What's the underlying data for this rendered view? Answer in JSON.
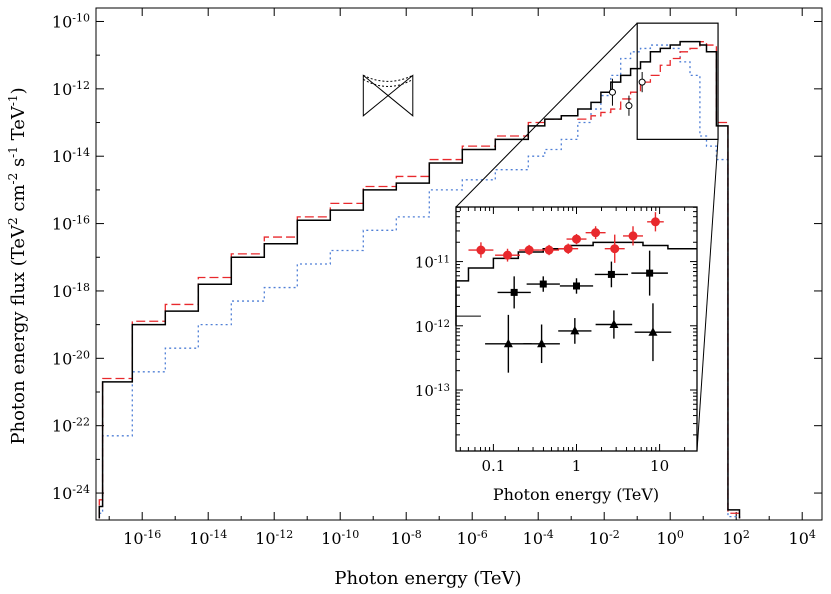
{
  "chart_data": [
    {
      "type": "line",
      "xlabel": "Photon energy (TeV)",
      "ylabel_parts": [
        "Photon energy flux (TeV",
        "2",
        " cm",
        "-2",
        " s",
        "-1",
        " TeV",
        "-1",
        ")"
      ],
      "x_scale": "log",
      "y_scale": "log",
      "xlim_log10": [
        -17.4,
        4.6
      ],
      "ylim_log10": [
        -24.8,
        -9.6
      ],
      "x_ticks_log10": [
        -16,
        -14,
        -12,
        -10,
        -8,
        -6,
        -4,
        -2,
        0,
        2,
        4
      ],
      "y_ticks_log10": [
        -24,
        -22,
        -20,
        -18,
        -16,
        -14,
        -12,
        -10
      ],
      "tick_base": "10",
      "series": [
        {
          "style": "black-solid",
          "color": "#000000",
          "bin_edges_log10": [
            -17.3,
            -17.2,
            -16.3,
            -15.3,
            -14.3,
            -13.3,
            -12.3,
            -11.3,
            -10.3,
            -9.3,
            -8.3,
            -7.3,
            -6.3,
            -5.3,
            -4.3,
            -3.8,
            -3.3,
            -2.8,
            -2.4,
            -2.1,
            -1.8,
            -1.5,
            -1.2,
            -0.9,
            -0.6,
            -0.3,
            0.0,
            0.3,
            0.6,
            0.9,
            1.1,
            1.4,
            1.75,
            2.1
          ],
          "values_log10": [
            -24.4,
            -20.7,
            -19.0,
            -18.6,
            -17.8,
            -17.0,
            -16.6,
            -15.9,
            -15.6,
            -15.0,
            -14.8,
            -14.2,
            -13.8,
            -13.5,
            -13.1,
            -12.9,
            -12.8,
            -12.6,
            -12.4,
            -12.1,
            -11.8,
            -11.6,
            -11.4,
            -11.2,
            -10.9,
            -10.8,
            -10.7,
            -10.6,
            -10.6,
            -10.7,
            -10.9,
            -13.1,
            -24.5
          ]
        },
        {
          "style": "red-dashed",
          "color": "#e8292d",
          "bin_edges_log10": [
            -17.3,
            -17.2,
            -16.3,
            -15.3,
            -14.3,
            -13.3,
            -12.3,
            -11.3,
            -10.3,
            -9.3,
            -8.3,
            -7.3,
            -6.3,
            -5.3,
            -4.3,
            -3.8,
            -3.3,
            -2.8,
            -2.4,
            -2.1,
            -1.8,
            -1.5,
            -1.2,
            -0.9,
            -0.6,
            -0.3,
            0.0,
            0.3,
            0.6,
            0.9,
            1.1,
            1.4,
            1.75,
            2.1
          ],
          "values_log10": [
            -24.2,
            -20.6,
            -18.9,
            -18.4,
            -17.6,
            -16.9,
            -16.4,
            -15.8,
            -15.4,
            -14.9,
            -14.6,
            -14.1,
            -13.7,
            -13.4,
            -13.0,
            -12.9,
            -12.8,
            -12.9,
            -12.8,
            -12.7,
            -12.6,
            -12.3,
            -12.1,
            -11.8,
            -11.6,
            -11.3,
            -11.1,
            -10.9,
            -10.8,
            -10.6,
            -10.7,
            -13.0,
            -24.6
          ]
        },
        {
          "style": "blue-dotted",
          "color": "#4f7fd6",
          "bin_edges_log10": [
            -17.3,
            -17.2,
            -16.3,
            -15.3,
            -14.3,
            -13.3,
            -12.3,
            -11.3,
            -10.3,
            -9.3,
            -8.3,
            -7.3,
            -6.3,
            -5.3,
            -4.3,
            -3.8,
            -3.3,
            -2.8,
            -2.4,
            -2.1,
            -1.8,
            -1.5,
            -1.2,
            -0.9,
            -0.6,
            -0.3,
            0.0,
            0.3,
            0.6,
            0.9,
            1.1,
            1.4,
            1.75,
            2.1
          ],
          "values_log10": [
            -24.6,
            -22.3,
            -20.4,
            -19.7,
            -19.0,
            -18.3,
            -17.9,
            -17.2,
            -16.8,
            -16.2,
            -15.8,
            -15.0,
            -14.7,
            -14.4,
            -14.0,
            -13.8,
            -13.5,
            -13.0,
            -12.6,
            -12.2,
            -11.6,
            -11.1,
            -10.9,
            -10.8,
            -10.7,
            -10.7,
            -10.8,
            -11.2,
            -11.6,
            -13.4,
            -13.7,
            -14.1,
            -24.7
          ]
        }
      ],
      "points": [
        {
          "x_log10": -1.75,
          "y_log10": -12.1,
          "xerr_log10": 0.1,
          "yerr_log10": 0.4
        },
        {
          "x_log10": -1.25,
          "y_log10": -12.5,
          "xerr_log10": 0.1,
          "yerr_log10": 0.3
        },
        {
          "x_log10": -0.85,
          "y_log10": -11.8,
          "xerr_log10": 0.1,
          "yerr_log10": 0.3
        }
      ],
      "bowtie": {
        "x_log10": [
          -9.3,
          -7.8
        ],
        "y_log10": [
          -11.6,
          -12.8
        ],
        "center_log10": [
          -8.55,
          -12.2
        ]
      },
      "zoom_box": {
        "x_log10": [
          -1.0,
          1.45
        ],
        "y_log10": [
          -10.05,
          -13.5
        ]
      }
    },
    {
      "type": "scatter",
      "xlabel": "Photon energy (TeV)",
      "x_scale": "log",
      "y_scale": "log",
      "xlim_log10": [
        -1.45,
        1.45
      ],
      "ylim_log10": [
        -13.95,
        -10.15
      ],
      "x_ticks": [
        0.1,
        1,
        10
      ],
      "x_tick_labels": [
        "0.1",
        "1",
        "10"
      ],
      "y_ticks_log10": [
        -13,
        -12,
        -11
      ],
      "tick_base": "10",
      "model_line": {
        "color": "#000000",
        "bin_edges_log10": [
          -1.45,
          -1.3,
          -1.0,
          -0.7,
          -0.4,
          -0.1,
          0.2,
          0.5,
          0.8,
          1.1,
          1.45
        ],
        "values_log10": [
          -11.3,
          -11.1,
          -10.95,
          -10.85,
          -10.8,
          -10.75,
          -10.7,
          -10.7,
          -10.75,
          -10.8
        ]
      },
      "inset_segment": {
        "x_log10": [
          -1.45,
          -1.15
        ],
        "y_log10": -11.85
      },
      "series": [
        {
          "marker": "circle",
          "color": "#e8292d",
          "points": [
            {
              "x_log10": -1.15,
              "y_log10": -10.82,
              "xerr_log10": 0.15,
              "yerr_log10": 0.12
            },
            {
              "x_log10": -0.83,
              "y_log10": -10.9,
              "xerr_log10": 0.15,
              "yerr_log10": 0.1
            },
            {
              "x_log10": -0.57,
              "y_log10": -10.82,
              "xerr_log10": 0.12,
              "yerr_log10": 0.08
            },
            {
              "x_log10": -0.33,
              "y_log10": -10.82,
              "xerr_log10": 0.12,
              "yerr_log10": 0.08
            },
            {
              "x_log10": -0.1,
              "y_log10": -10.8,
              "xerr_log10": 0.12,
              "yerr_log10": 0.08
            },
            {
              "x_log10": 0.0,
              "y_log10": -10.65,
              "xerr_log10": 0.12,
              "yerr_log10": 0.08
            },
            {
              "x_log10": 0.23,
              "y_log10": -10.55,
              "xerr_log10": 0.12,
              "yerr_log10": 0.1
            },
            {
              "x_log10": 0.46,
              "y_log10": -10.8,
              "xerr_log10": 0.12,
              "yerr_log10": 0.22
            },
            {
              "x_log10": 0.68,
              "y_log10": -10.6,
              "xerr_log10": 0.12,
              "yerr_log10": 0.15
            },
            {
              "x_log10": 0.95,
              "y_log10": -10.38,
              "xerr_log10": 0.1,
              "yerr_log10": 0.15
            }
          ]
        },
        {
          "marker": "square",
          "color": "#000000",
          "points": [
            {
              "x_log10": -0.75,
              "y_log10": -11.48,
              "xerr_log10": 0.2,
              "yerr_log10": 0.25
            },
            {
              "x_log10": -0.4,
              "y_log10": -11.35,
              "xerr_log10": 0.2,
              "yerr_log10": 0.12
            },
            {
              "x_log10": 0.0,
              "y_log10": -11.38,
              "xerr_log10": 0.2,
              "yerr_log10": 0.12
            },
            {
              "x_log10": 0.42,
              "y_log10": -11.2,
              "xerr_log10": 0.2,
              "yerr_log10": 0.2
            },
            {
              "x_log10": 0.88,
              "y_log10": -11.18,
              "xerr_log10": 0.22,
              "yerr_log10": 0.35
            }
          ]
        },
        {
          "marker": "triangle",
          "color": "#000000",
          "points": [
            {
              "x_log10": -0.82,
              "y_log10": -12.28,
              "xerr_log10": 0.28,
              "yerr_log10": 0.45
            },
            {
              "x_log10": -0.42,
              "y_log10": -12.28,
              "xerr_log10": 0.22,
              "yerr_log10": 0.3
            },
            {
              "x_log10": -0.02,
              "y_log10": -12.08,
              "xerr_log10": 0.2,
              "yerr_log10": 0.2
            },
            {
              "x_log10": 0.45,
              "y_log10": -11.98,
              "xerr_log10": 0.22,
              "yerr_log10": 0.22
            },
            {
              "x_log10": 0.92,
              "y_log10": -12.1,
              "xerr_log10": 0.22,
              "yerr_log10": 0.45
            }
          ]
        }
      ]
    }
  ]
}
